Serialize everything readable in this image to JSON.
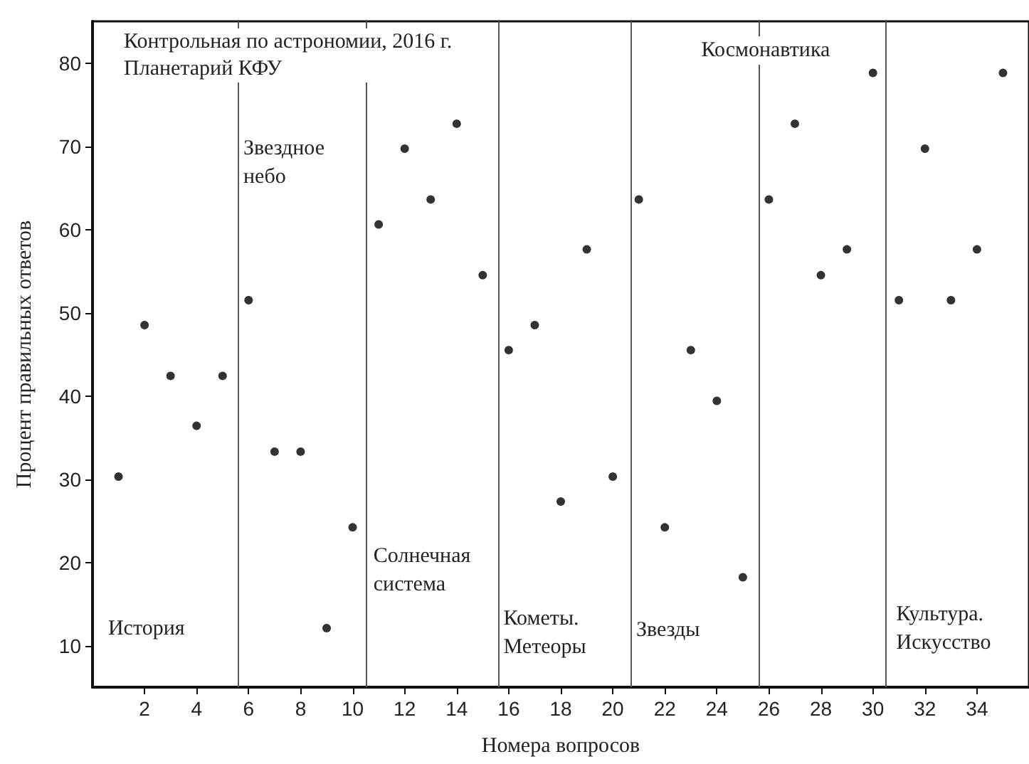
{
  "chart_data": {
    "type": "scatter",
    "title": "Контрольная по астрономии, 2016 г.",
    "subtitle": "Планетарий КФУ",
    "xlabel": "Номера вопросов",
    "ylabel": "Процент правильных ответов",
    "x": [
      1,
      2,
      3,
      4,
      5,
      6,
      7,
      8,
      9,
      10,
      11,
      12,
      13,
      14,
      15,
      16,
      17,
      18,
      19,
      20,
      21,
      22,
      23,
      24,
      25,
      26,
      27,
      28,
      29,
      30,
      31,
      32,
      33,
      34,
      35
    ],
    "values": [
      30.3,
      48.5,
      42.4,
      36.4,
      42.4,
      51.5,
      33.3,
      33.3,
      12.1,
      24.2,
      60.6,
      69.7,
      63.6,
      72.7,
      54.5,
      45.5,
      48.5,
      27.3,
      57.6,
      30.3,
      63.6,
      24.2,
      45.5,
      39.4,
      18.2,
      63.6,
      72.7,
      54.5,
      57.6,
      78.8,
      51.5,
      69.7,
      51.5,
      57.6,
      78.8
    ],
    "color": "#000000",
    "marker": "circle",
    "grid": false,
    "xlim": [
      0,
      36
    ],
    "xticks": [
      2,
      4,
      6,
      8,
      10,
      12,
      14,
      16,
      18,
      20,
      22,
      24,
      26,
      28,
      30,
      32,
      34
    ],
    "ylim": [
      5,
      85
    ],
    "yticks": [
      10,
      20,
      30,
      40,
      50,
      60,
      70,
      80
    ],
    "ref_lines": [
      {
        "axis": "x",
        "value": 5.6,
        "color": "#555555"
      },
      {
        "axis": "x",
        "value": 10.5,
        "color": "#555555"
      },
      {
        "axis": "x",
        "value": 15.6,
        "color": "#555555"
      },
      {
        "axis": "x",
        "value": 20.7,
        "color": "#555555"
      },
      {
        "axis": "x",
        "value": 25.6,
        "color": "#555555"
      },
      {
        "axis": "x",
        "value": 30.5,
        "color": "#555555"
      }
    ],
    "annotations": [
      "История",
      "Звездное\nнебо",
      "Солнечная\nсистема",
      "Кометы.\nМетеоры",
      "Звезды",
      "Космонавтика",
      "Культура.\nИскусство"
    ]
  }
}
